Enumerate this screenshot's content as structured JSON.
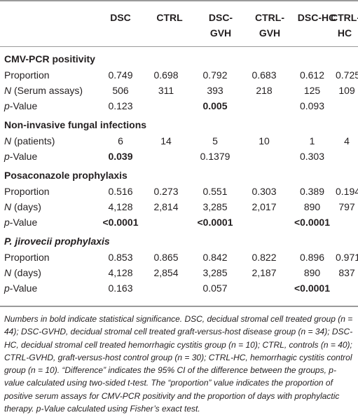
{
  "headers": [
    "DSC",
    "CTRL",
    "DSC-\nGVH",
    "CTRL-\nGVH",
    "DSC-HC",
    "CTRL-\nHC"
  ],
  "sections": [
    {
      "title": "CMV-PCR positivity",
      "rows": [
        {
          "label": "Proportion",
          "cells": [
            "0.749",
            "0.698",
            "0.792",
            "0.683",
            "0.612",
            "0.725"
          ]
        },
        {
          "label_italic": "N",
          "label": " (Serum assays)",
          "cells": [
            "506",
            "311",
            "393",
            "218",
            "125",
            "109"
          ]
        },
        {
          "label_italic": "p",
          "label": "-Value",
          "cells": [
            "0.123",
            "",
            "0.005",
            "",
            "0.093",
            ""
          ],
          "bold": [
            2
          ]
        }
      ]
    },
    {
      "title": "Non-invasive fungal infections",
      "rows": [
        {
          "label_italic": "N",
          "label": " (patients)",
          "cells": [
            "6",
            "14",
            "5",
            "10",
            "1",
            "4"
          ]
        },
        {
          "label_italic": "p",
          "label": "-Value",
          "cells": [
            "0.039",
            "",
            "0.1379",
            "",
            "0.303",
            ""
          ],
          "bold": [
            0
          ]
        }
      ]
    },
    {
      "title": "Posaconazole prophylaxis",
      "rows": [
        {
          "label": "Proportion",
          "cells": [
            "0.516",
            "0.273",
            "0.551",
            "0.303",
            "0.389",
            "0.194"
          ]
        },
        {
          "label_italic": "N",
          "label": " (days)",
          "cells": [
            "4,128",
            "2,814",
            "3,285",
            "2,017",
            "890",
            "797"
          ]
        },
        {
          "label_italic": "p",
          "label": "-Value",
          "cells": [
            "<0.0001",
            "",
            "<0.0001",
            "",
            "<0.0001",
            ""
          ],
          "bold": [
            0,
            2,
            4
          ]
        }
      ]
    },
    {
      "title": "P. jirovecii prophylaxis",
      "title_italic": true,
      "rows": [
        {
          "label": "Proportion",
          "cells": [
            "0.853",
            "0.865",
            "0.842",
            "0.822",
            "0.896",
            "0.971"
          ]
        },
        {
          "label_italic": "N",
          "label": " (days)",
          "cells": [
            "4,128",
            "2,854",
            "3,285",
            "2,187",
            "890",
            "837"
          ]
        },
        {
          "label_italic": "p",
          "label": "-Value",
          "cells": [
            "0.163",
            "",
            "0.057",
            "",
            "<0.0001",
            ""
          ],
          "bold": [
            4
          ]
        }
      ]
    }
  ],
  "footnote": "Numbers in bold indicate statistical significance. DSC, decidual stromal cell treated group (n = 44); DSC-GVHD, decidual stromal cell treated graft-versus-host disease group (n = 34); DSC-HC, decidual stromal cell treated hemorrhagic cystitis group (n = 10); CTRL, controls (n = 40); CTRL-GVHD, graft-versus-host control group (n = 30); CTRL-HC, hemorrhagic cystitis control group (n = 10). “Difference” indicates the 95% CI of the difference between the groups, p-value calculated using two-sided t-test. The “proportion” value indicates the proportion of positive serum assays for CMV-PCR positivity and the proportion of days with prophylactic therapy. p-Value calculated using Fisher’s exact test."
}
